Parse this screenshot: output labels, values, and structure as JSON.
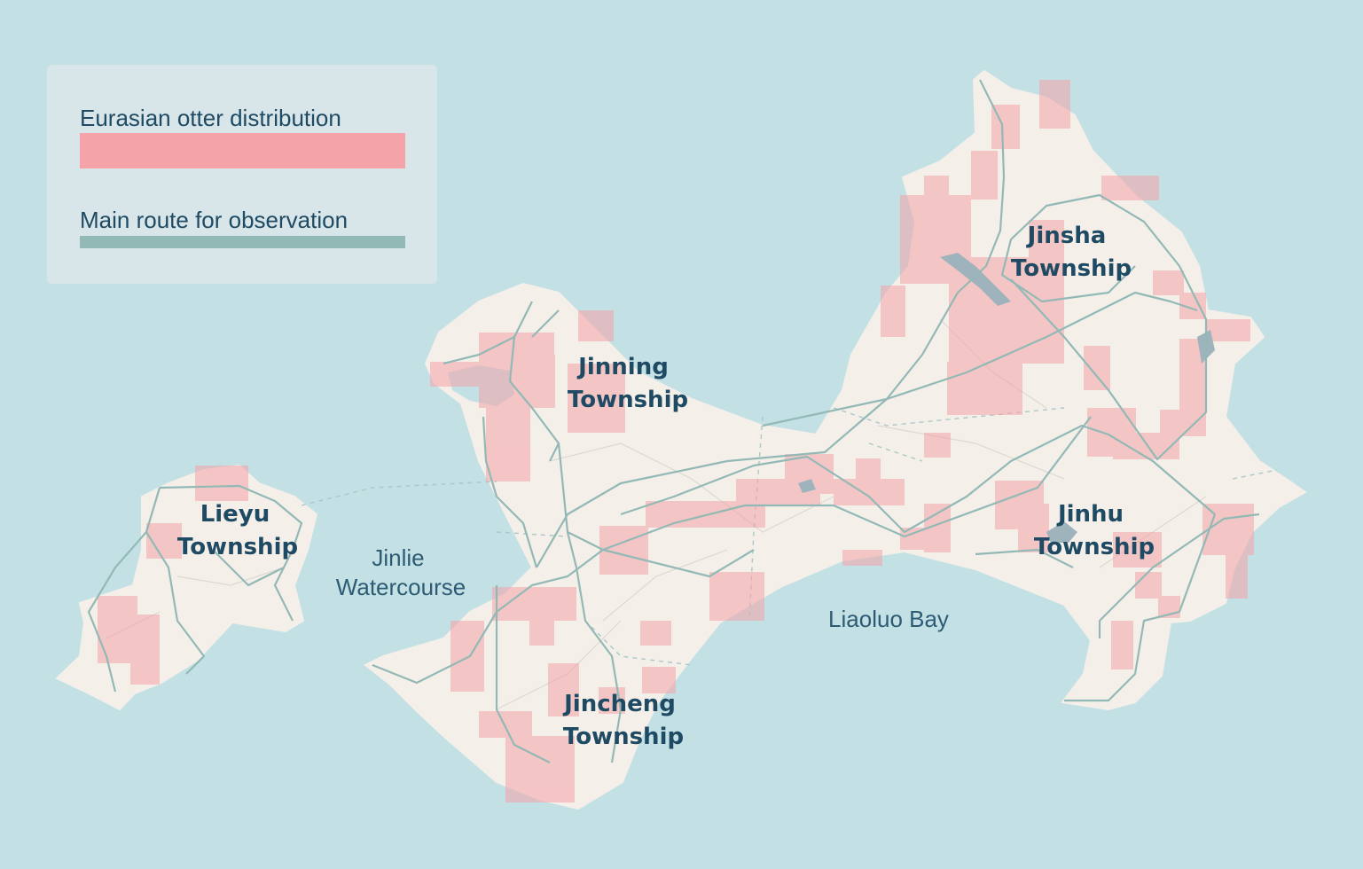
{
  "legend": {
    "items": [
      {
        "label": "Eurasian otter distribution",
        "color": "#f4a3a8"
      },
      {
        "label": "Main route for observation",
        "color": "#93b9b6"
      }
    ]
  },
  "townships": [
    {
      "lines": [
        "Jinning",
        "Township"
      ]
    },
    {
      "lines": [
        "Jinsha",
        "Township"
      ]
    },
    {
      "lines": [
        "Lieyu",
        "Township"
      ]
    },
    {
      "lines": [
        "Jinhu",
        "Township"
      ]
    },
    {
      "lines": [
        "Jincheng",
        "Township"
      ]
    }
  ],
  "water_bodies": [
    {
      "lines": [
        "Jinlie",
        "Watercourse"
      ]
    },
    {
      "lines": [
        "Liaoluo Bay"
      ]
    }
  ]
}
